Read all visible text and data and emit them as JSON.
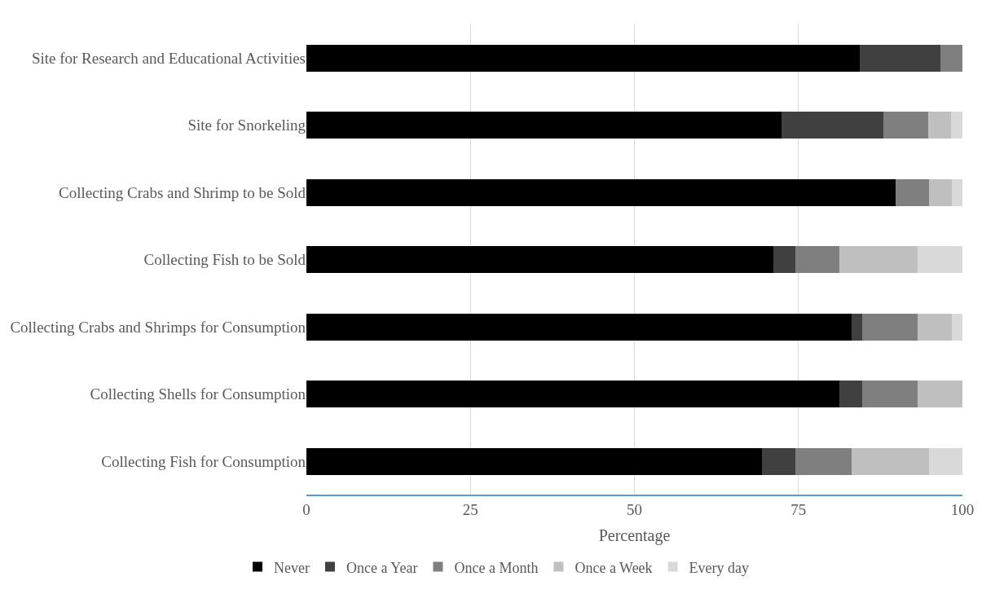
{
  "chart_data": {
    "type": "bar",
    "orientation": "horizontal",
    "stacked": true,
    "xlabel": "Percentage",
    "categories": [
      "Site for Research and Educational Activities",
      "Site for Snorkeling",
      "Collecting Crabs and Shrimp to be Sold",
      "Collecting Fish to be Sold",
      "Collecting Crabs and Shrimps for Consumption",
      "Collecting Shells for Consumption",
      "Collecting Fish for Consumption"
    ],
    "series": [
      {
        "name": "Never",
        "color": "#000000",
        "values": [
          84.4,
          72.4,
          89.8,
          71.2,
          83.1,
          81.3,
          69.4
        ]
      },
      {
        "name": "Once a Year",
        "color": "#404040",
        "values": [
          12.2,
          15.6,
          0,
          3.3,
          1.6,
          3.4,
          5.1
        ]
      },
      {
        "name": "Once a Month",
        "color": "#7f7f7f",
        "values": [
          3.4,
          6.8,
          5.1,
          6.8,
          8.5,
          8.5,
          8.6
        ]
      },
      {
        "name": "Once a Week",
        "color": "#bfbfbf",
        "values": [
          0,
          3.5,
          3.5,
          11.9,
          5.2,
          6.8,
          11.8
        ]
      },
      {
        "name": "Every day",
        "color": "#d9d9d9",
        "values": [
          0,
          1.7,
          1.6,
          6.8,
          1.6,
          0,
          5.1
        ]
      }
    ],
    "xlim": [
      0,
      100
    ],
    "xticks": [
      0,
      25,
      50,
      75,
      100
    ],
    "grid": "x",
    "legend": "bottom"
  }
}
